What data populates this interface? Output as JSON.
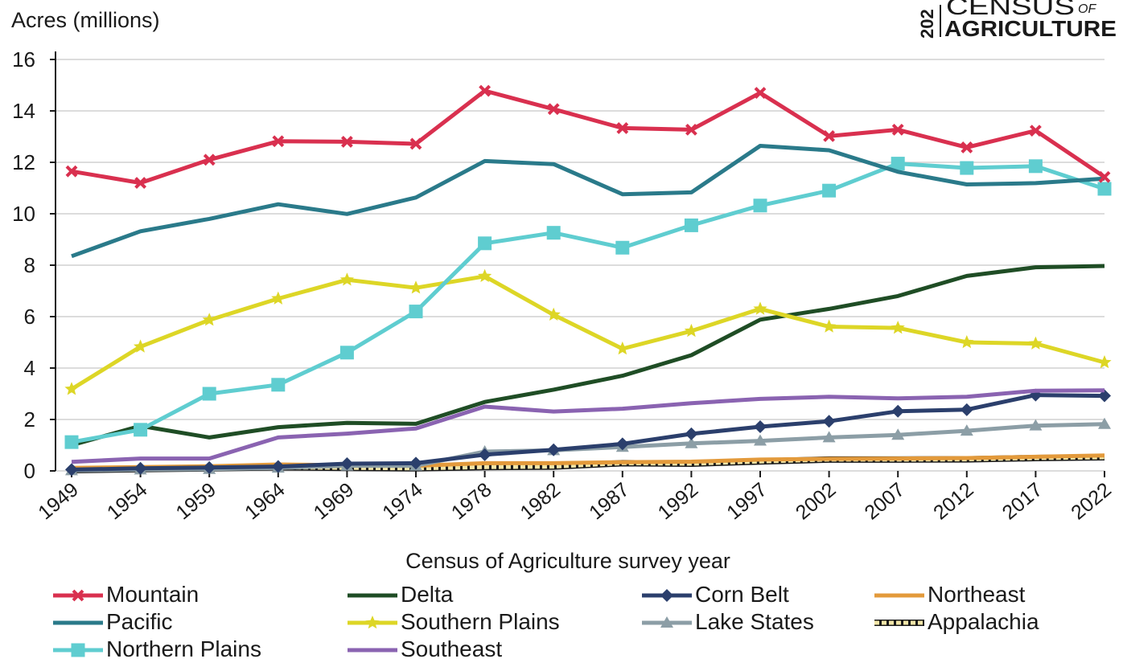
{
  "logo": {
    "line1": "CENSUS",
    "line1_small": "OF",
    "line2": "AGRICULTURE",
    "year_fragment": "202"
  },
  "chart_data": {
    "type": "line",
    "ylabel": "Acres (millions)",
    "xlabel": "Census of Agriculture survey year",
    "ylim": [
      0,
      16
    ],
    "yticks": [
      0,
      2,
      4,
      6,
      8,
      10,
      12,
      14,
      16
    ],
    "grid": "horizontal",
    "legend_position": "bottom",
    "categories": [
      "1949",
      "1954",
      "1959",
      "1964",
      "1969",
      "1974",
      "1978",
      "1982",
      "1987",
      "1992",
      "1997",
      "2002",
      "2007",
      "2012",
      "2017",
      "2022"
    ],
    "series": [
      {
        "name": "Mountain",
        "color": "#d9304f",
        "marker": "x",
        "values": [
          11.65,
          11.2,
          12.1,
          12.82,
          12.8,
          12.72,
          14.78,
          14.07,
          13.33,
          13.27,
          14.7,
          13.02,
          13.27,
          12.58,
          13.23,
          11.43
        ]
      },
      {
        "name": "Pacific",
        "color": "#2a7a8a",
        "marker": "none",
        "values": [
          8.35,
          9.32,
          9.8,
          10.37,
          9.99,
          10.63,
          12.05,
          11.93,
          10.76,
          10.83,
          12.64,
          12.47,
          11.63,
          11.14,
          11.19,
          11.37
        ]
      },
      {
        "name": "Northern Plains",
        "color": "#5fcdd0",
        "marker": "square",
        "values": [
          1.12,
          1.6,
          3.0,
          3.35,
          4.6,
          6.2,
          8.85,
          9.26,
          8.68,
          9.55,
          10.32,
          10.9,
          11.95,
          11.78,
          11.85,
          10.97
        ]
      },
      {
        "name": "Delta",
        "color": "#1f4d25",
        "marker": "none",
        "values": [
          1.0,
          1.75,
          1.3,
          1.7,
          1.87,
          1.83,
          2.68,
          3.16,
          3.7,
          4.5,
          5.88,
          6.3,
          6.8,
          7.58,
          7.92,
          7.97
        ]
      },
      {
        "name": "Southern Plains",
        "color": "#ddd626",
        "marker": "star",
        "values": [
          3.18,
          4.83,
          5.87,
          6.7,
          7.43,
          7.12,
          7.57,
          6.07,
          4.75,
          5.44,
          6.3,
          5.61,
          5.56,
          5.0,
          4.95,
          4.22
        ]
      },
      {
        "name": "Southeast",
        "color": "#8a63b1",
        "marker": "none",
        "values": [
          0.35,
          0.48,
          0.48,
          1.3,
          1.45,
          1.65,
          2.5,
          2.31,
          2.42,
          2.63,
          2.8,
          2.88,
          2.82,
          2.88,
          3.12,
          3.13
        ]
      },
      {
        "name": "Corn Belt",
        "color": "#2b3f6c",
        "marker": "diamond",
        "values": [
          0.05,
          0.1,
          0.13,
          0.17,
          0.28,
          0.3,
          0.63,
          0.82,
          1.05,
          1.44,
          1.72,
          1.93,
          2.32,
          2.38,
          2.95,
          2.92
        ]
      },
      {
        "name": "Lake States",
        "color": "#8c9ea6",
        "marker": "triangle",
        "values": [
          0.02,
          0.05,
          0.07,
          0.12,
          0.2,
          0.2,
          0.75,
          0.8,
          0.93,
          1.07,
          1.17,
          1.3,
          1.4,
          1.56,
          1.76,
          1.82
        ]
      },
      {
        "name": "Northeast",
        "color": "#e39a3b",
        "marker": "none",
        "values": [
          0.12,
          0.15,
          0.18,
          0.25,
          0.22,
          0.2,
          0.3,
          0.3,
          0.34,
          0.36,
          0.44,
          0.47,
          0.48,
          0.5,
          0.55,
          0.6
        ]
      },
      {
        "name": "Appalachia",
        "color": "#f3e6a8",
        "marker": "dashed-box",
        "values": [
          0.03,
          0.07,
          0.1,
          0.14,
          0.12,
          0.1,
          0.15,
          0.17,
          0.3,
          0.28,
          0.37,
          0.44,
          0.44,
          0.45,
          0.5,
          0.53
        ]
      }
    ],
    "legend_order": [
      "Mountain",
      "Delta",
      "Corn Belt",
      "Northeast",
      "Pacific",
      "Southern Plains",
      "Lake States",
      "Appalachia",
      "Northern Plains",
      "Southeast"
    ]
  }
}
